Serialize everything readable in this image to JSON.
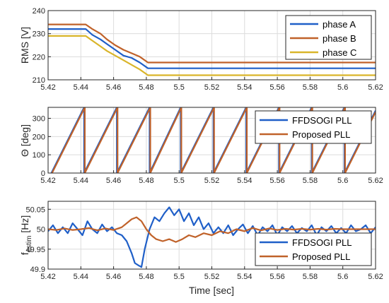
{
  "colors": {
    "blue": "#1f5fc8",
    "orange": "#c0622a",
    "yellow": "#d9b52a"
  },
  "xlabel": "Time [sec]",
  "chart_data": [
    {
      "type": "line",
      "ylabel": "RMS [V]",
      "xlim": [
        5.42,
        5.62
      ],
      "ylim": [
        210,
        240
      ],
      "xticks": [
        "5.42",
        "5.44",
        "5.46",
        "5.48",
        "5.5",
        "5.52",
        "5.54",
        "5.56",
        "5.58",
        "5.6",
        "5.62"
      ],
      "yticks": [
        "210",
        "220",
        "230",
        "240"
      ],
      "grid": true,
      "legend_position": "top-right",
      "series": [
        {
          "name": "phase A",
          "color": "#1f5fc8",
          "x": [
            5.42,
            5.443,
            5.447,
            5.452,
            5.456,
            5.461,
            5.466,
            5.471,
            5.476,
            5.481,
            5.62
          ],
          "y": [
            232,
            232,
            229.5,
            227.5,
            225.5,
            223,
            220.5,
            219.5,
            217.5,
            215,
            215
          ]
        },
        {
          "name": "phase B",
          "color": "#c0622a",
          "x": [
            5.42,
            5.443,
            5.447,
            5.452,
            5.456,
            5.461,
            5.466,
            5.471,
            5.476,
            5.481,
            5.62
          ],
          "y": [
            234,
            234,
            232,
            230,
            227.5,
            225,
            223,
            221.5,
            220,
            217.5,
            217.5
          ]
        },
        {
          "name": "phase C",
          "color": "#d9b52a",
          "x": [
            5.42,
            5.443,
            5.447,
            5.452,
            5.456,
            5.461,
            5.466,
            5.471,
            5.476,
            5.481,
            5.62
          ],
          "y": [
            229,
            229,
            227,
            224.5,
            222.5,
            220.5,
            218.5,
            216.5,
            214.5,
            212,
            212
          ]
        }
      ]
    },
    {
      "type": "line",
      "ylabel": "Θ [deg]",
      "xlim": [
        5.42,
        5.62
      ],
      "ylim": [
        0,
        360
      ],
      "xticks": [
        "5.42",
        "5.44",
        "5.46",
        "5.48",
        "5.5",
        "5.52",
        "5.54",
        "5.56",
        "5.58",
        "5.6",
        "5.62"
      ],
      "yticks": [
        "0",
        "100",
        "200",
        "300"
      ],
      "grid": true,
      "legend_position": "top-right",
      "sawtooth": {
        "wrap_times": [
          5.442,
          5.462,
          5.482,
          5.501,
          5.521,
          5.541,
          5.561,
          5.581,
          5.601
        ],
        "period": 0.02,
        "max": 360
      },
      "series": [
        {
          "name": "FFDSOGI PLL",
          "color": "#1f5fc8"
        },
        {
          "name": "Proposed PLL",
          "color": "#c0622a"
        }
      ]
    },
    {
      "type": "line",
      "ylabel": "f",
      "ylabel_sub": "estim",
      "ylabel_unit": "[Hz]",
      "xlim": [
        5.42,
        5.62
      ],
      "ylim": [
        49.9,
        50.07
      ],
      "xticks": [
        "5.42",
        "5.44",
        "5.46",
        "5.48",
        "5.5",
        "5.52",
        "5.54",
        "5.56",
        "5.58",
        "5.6",
        "5.62"
      ],
      "yticks": [
        "49.9",
        "49.95",
        "50",
        "50.05"
      ],
      "grid": true,
      "legend_position": "bottom-right",
      "series": [
        {
          "name": "FFDSOGI PLL",
          "color": "#1f5fc8",
          "x": [
            5.42,
            5.423,
            5.426,
            5.429,
            5.432,
            5.435,
            5.438,
            5.441,
            5.444,
            5.447,
            5.45,
            5.453,
            5.456,
            5.459,
            5.462,
            5.465,
            5.468,
            5.471,
            5.473,
            5.475,
            5.477,
            5.479,
            5.482,
            5.485,
            5.488,
            5.491,
            5.494,
            5.497,
            5.5,
            5.503,
            5.506,
            5.509,
            5.512,
            5.515,
            5.518,
            5.521,
            5.524,
            5.527,
            5.53,
            5.533,
            5.536,
            5.539,
            5.542,
            5.545,
            5.548,
            5.551,
            5.554,
            5.557,
            5.56,
            5.563,
            5.566,
            5.569,
            5.572,
            5.575,
            5.578,
            5.581,
            5.584,
            5.587,
            5.59,
            5.593,
            5.596,
            5.599,
            5.602,
            5.605,
            5.608,
            5.611,
            5.614,
            5.617,
            5.62
          ],
          "y": [
            49.995,
            50.01,
            49.99,
            50.005,
            49.99,
            50.015,
            50.0,
            49.985,
            50.02,
            50.0,
            49.99,
            50.012,
            49.995,
            50.005,
            49.99,
            49.985,
            49.97,
            49.94,
            49.915,
            49.91,
            49.905,
            49.95,
            50.0,
            50.03,
            50.02,
            50.04,
            50.055,
            50.035,
            50.05,
            50.02,
            50.04,
            50.01,
            50.03,
            50.0,
            50.015,
            49.99,
            50.005,
            49.99,
            50.01,
            49.985,
            50.0,
            50.012,
            49.99,
            50.008,
            49.985,
            50.005,
            49.995,
            50.01,
            49.985,
            50.005,
            49.995,
            50.008,
            49.99,
            50.003,
            49.995,
            50.01,
            49.985,
            50.005,
            49.995,
            50.008,
            49.99,
            50.003,
            49.99,
            50.01,
            49.995,
            50.0,
            50.01,
            49.99,
            50.005
          ]
        },
        {
          "name": "Proposed PLL",
          "color": "#c0622a",
          "x": [
            5.42,
            5.425,
            5.43,
            5.435,
            5.44,
            5.445,
            5.45,
            5.455,
            5.46,
            5.465,
            5.468,
            5.471,
            5.474,
            5.477,
            5.48,
            5.483,
            5.486,
            5.49,
            5.494,
            5.498,
            5.502,
            5.506,
            5.51,
            5.515,
            5.52,
            5.525,
            5.53,
            5.535,
            5.54,
            5.545,
            5.55,
            5.555,
            5.56,
            5.565,
            5.57,
            5.575,
            5.58,
            5.585,
            5.59,
            5.595,
            5.6,
            5.605,
            5.61,
            5.615,
            5.62
          ],
          "y": [
            50.0,
            49.998,
            50.002,
            49.998,
            50.0,
            50.003,
            49.997,
            50.002,
            49.998,
            50.005,
            50.015,
            50.025,
            50.03,
            50.02,
            50.0,
            49.985,
            49.975,
            49.97,
            49.975,
            49.968,
            49.975,
            49.985,
            49.98,
            49.99,
            49.985,
            49.995,
            49.99,
            50.0,
            49.995,
            50.003,
            49.997,
            50.002,
            49.998,
            50.001,
            49.999,
            50.001,
            49.999,
            50.001,
            49.999,
            50.001,
            50.0,
            50.0,
            50.0,
            50.0,
            50.0
          ]
        }
      ]
    }
  ]
}
